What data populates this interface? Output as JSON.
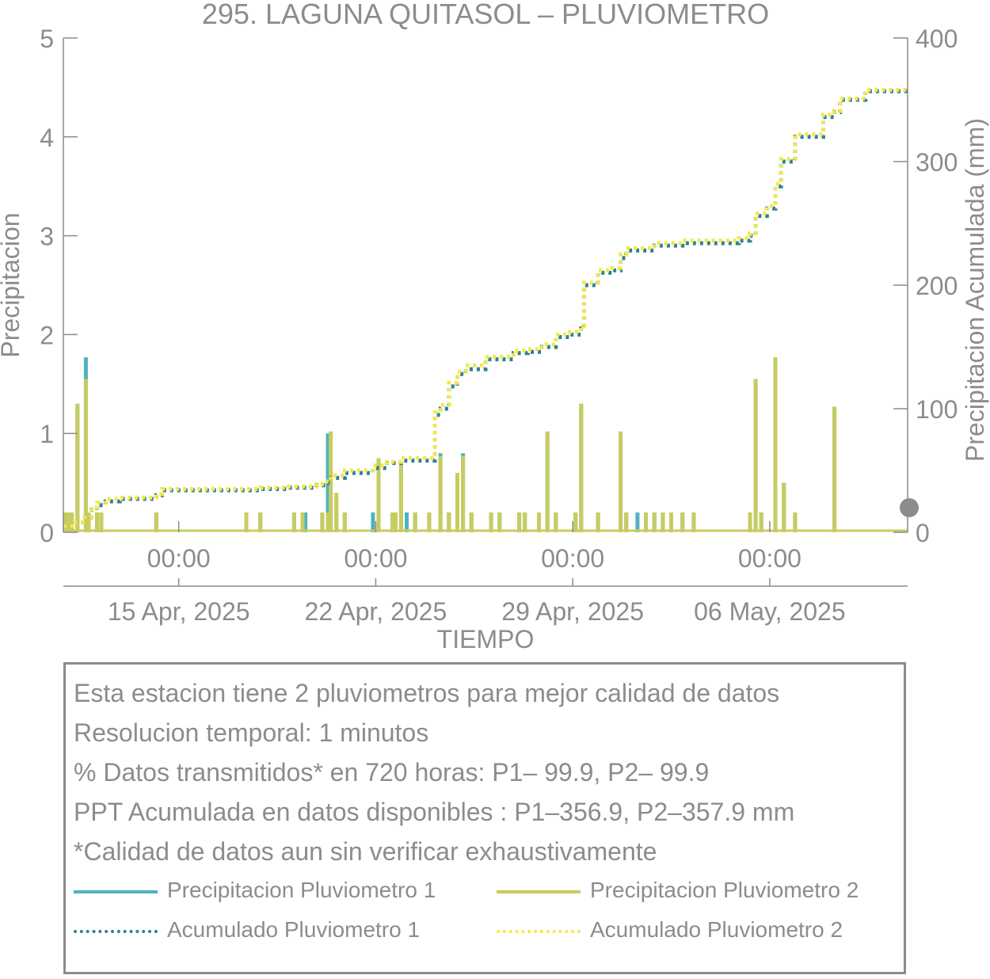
{
  "chart_data": {
    "type": "bar",
    "title": "295. LAGUNA QUITASOL – PLUVIOMETRO",
    "xlabel": "TIEMPO",
    "ylabel": "Precipitacion",
    "y2label": "Precipitacion Acumulada (mm)",
    "ylim": [
      0,
      5
    ],
    "y2lim": [
      0,
      400
    ],
    "yticks": [
      "0",
      "1",
      "2",
      "3",
      "4",
      "5"
    ],
    "y2ticks": [
      "0",
      "100",
      "200",
      "300",
      "400"
    ],
    "xlim_days": [
      0,
      30
    ],
    "xticks": [
      {
        "day": 4.1,
        "time": "00:00",
        "date": "15 Apr, 2025"
      },
      {
        "day": 11.1,
        "time": "00:00",
        "date": "22 Apr, 2025"
      },
      {
        "day": 18.1,
        "time": "00:00",
        "date": "29 Apr, 2025"
      },
      {
        "day": 25.1,
        "time": "00:00",
        "date": "06 May, 2025"
      }
    ],
    "colors": {
      "p1_bar": "#4fb3bf",
      "p2_bar": "#c8cc60",
      "p1_cum": "#2e7f96",
      "p2_cum": "#f2e84a",
      "axis": "#8c8c8c"
    },
    "series": [
      {
        "name": "Precipitacion Pluviometro 1",
        "kind": "bar",
        "axis": "left",
        "x": [
          0.05,
          0.2,
          0.3,
          0.5,
          0.8,
          0.9,
          1.2,
          1.35,
          3.3,
          6.5,
          7.0,
          8.2,
          8.5,
          8.6,
          9.2,
          9.4,
          9.5,
          9.7,
          10.0,
          11.0,
          11.2,
          11.7,
          11.8,
          12.0,
          12.2,
          12.5,
          13.0,
          13.4,
          13.7,
          14.0,
          14.2,
          14.5,
          15.2,
          15.5,
          16.2,
          16.4,
          16.9,
          17.2,
          17.5,
          18.2,
          18.4,
          19.0,
          19.8,
          20.0,
          20.4,
          20.7,
          21.0,
          21.3,
          21.6,
          22.0,
          22.4,
          24.4,
          24.6,
          24.8,
          25.3,
          25.6,
          26.0,
          27.4
        ],
        "values": [
          0.2,
          0.2,
          0.2,
          1.3,
          1.77,
          0.2,
          0.2,
          0.2,
          0.2,
          0.2,
          0.2,
          0.2,
          0.2,
          0.2,
          0.2,
          1.0,
          0.4,
          0.2,
          0.2,
          0.2,
          0.7,
          0.2,
          0.2,
          0.7,
          0.2,
          0.2,
          0.2,
          0.8,
          0.2,
          0.6,
          0.8,
          0.2,
          0.2,
          0.2,
          0.2,
          0.2,
          0.2,
          1.0,
          0.2,
          0.2,
          1.3,
          0.2,
          1.0,
          0.2,
          0.2,
          0.2,
          0.2,
          0.2,
          0.2,
          0.2,
          0.2,
          0.2,
          1.55,
          0.2,
          1.77,
          0.5,
          0.2,
          1.27
        ]
      },
      {
        "name": "Precipitacion Pluviometro 2",
        "kind": "bar",
        "axis": "left",
        "x": [
          0.05,
          0.2,
          0.3,
          0.5,
          0.8,
          0.9,
          1.2,
          1.35,
          3.3,
          6.5,
          7.0,
          8.2,
          8.5,
          9.2,
          9.4,
          9.5,
          9.7,
          10.0,
          11.2,
          11.7,
          11.8,
          12.0,
          12.5,
          13.0,
          13.4,
          13.7,
          14.0,
          14.2,
          14.5,
          15.2,
          15.5,
          16.2,
          16.4,
          16.9,
          17.2,
          17.5,
          18.2,
          18.4,
          19.0,
          19.8,
          20.0,
          20.7,
          21.0,
          21.3,
          21.6,
          22.0,
          22.4,
          24.4,
          24.6,
          24.8,
          25.3,
          25.6,
          26.0,
          27.4
        ],
        "values": [
          0.2,
          0.2,
          0.2,
          1.3,
          1.55,
          0.2,
          0.2,
          0.2,
          0.2,
          0.2,
          0.2,
          0.2,
          0.2,
          0.2,
          0.2,
          1.02,
          0.4,
          0.2,
          0.75,
          0.2,
          0.2,
          0.7,
          0.2,
          0.2,
          0.77,
          0.2,
          0.6,
          0.77,
          0.2,
          0.2,
          0.2,
          0.2,
          0.2,
          0.2,
          1.02,
          0.2,
          0.2,
          1.3,
          0.2,
          1.02,
          0.2,
          0.2,
          0.2,
          0.2,
          0.2,
          0.2,
          0.2,
          0.2,
          1.55,
          0.2,
          1.77,
          0.5,
          0.2,
          1.27
        ]
      },
      {
        "name": "Acumulado Pluviometro 1",
        "kind": "line",
        "axis": "right",
        "x": [
          0,
          0.4,
          0.7,
          1.0,
          1.2,
          1.5,
          2.0,
          3.0,
          3.3,
          3.5,
          5.0,
          7.0,
          8.0,
          9.0,
          9.3,
          9.5,
          10.0,
          11.0,
          11.5,
          12.0,
          13.0,
          13.2,
          13.4,
          13.7,
          14.0,
          14.3,
          15.0,
          16.0,
          16.5,
          17.0,
          17.5,
          18.0,
          18.4,
          18.5,
          19.0,
          19.5,
          19.8,
          20.0,
          21.0,
          22.0,
          24.0,
          24.4,
          24.6,
          25.0,
          25.3,
          25.5,
          26.0,
          27.0,
          27.4,
          27.6,
          28.5,
          30.0
        ],
        "values": [
          5,
          8,
          12,
          18,
          22,
          25,
          27,
          27,
          30,
          34,
          34,
          35,
          36,
          38,
          40,
          44,
          48,
          52,
          56,
          58,
          58,
          95,
          100,
          118,
          128,
          132,
          140,
          145,
          146,
          150,
          158,
          160,
          165,
          200,
          210,
          212,
          222,
          228,
          232,
          234,
          236,
          240,
          256,
          262,
          280,
          300,
          320,
          336,
          340,
          350,
          357,
          357
        ]
      },
      {
        "name": "Acumulado Pluviometro 2",
        "kind": "line",
        "axis": "right",
        "x": [
          0,
          0.4,
          0.7,
          1.0,
          1.2,
          1.5,
          2.0,
          3.0,
          3.3,
          3.5,
          5.0,
          7.0,
          8.0,
          9.0,
          9.3,
          9.5,
          10.0,
          11.0,
          11.5,
          12.0,
          13.0,
          13.2,
          13.4,
          13.7,
          14.0,
          14.3,
          15.0,
          16.0,
          16.5,
          17.0,
          17.5,
          18.0,
          18.4,
          18.5,
          19.0,
          19.5,
          19.8,
          20.0,
          21.0,
          22.0,
          24.0,
          24.4,
          24.6,
          25.0,
          25.3,
          25.5,
          26.0,
          27.0,
          27.4,
          27.6,
          28.5,
          30.0
        ],
        "values": [
          5,
          8,
          12,
          20,
          24,
          27,
          28,
          28,
          31,
          35,
          35,
          36,
          37,
          39,
          41,
          46,
          50,
          54,
          57,
          60,
          60,
          97,
          103,
          121,
          130,
          135,
          142,
          147,
          148,
          152,
          160,
          162,
          167,
          202,
          212,
          214,
          225,
          230,
          234,
          236,
          238,
          242,
          258,
          264,
          282,
          302,
          322,
          338,
          341,
          351,
          358,
          358
        ]
      }
    ]
  },
  "info": {
    "lines": [
      "Esta estacion tiene 2 pluviometros para mejor calidad de datos",
      "Resolucion temporal: 1 minutos",
      "% Datos transmitidos* en 720 horas: P1– 99.9, P2– 99.9",
      "PPT Acumulada en datos disponibles : P1–356.9, P2–357.9 mm",
      "*Calidad de datos aun sin verificar exhaustivamente"
    ]
  },
  "legend": {
    "items": [
      {
        "label": "Precipitacion Pluviometro 1",
        "color": "#4fb3bf",
        "style": "solid"
      },
      {
        "label": "Precipitacion Pluviometro 2",
        "color": "#c8cc60",
        "style": "solid"
      },
      {
        "label": "Acumulado Pluviometro 1",
        "color": "#2e7f96",
        "style": "dotted"
      },
      {
        "label": "Acumulado Pluviometro 2",
        "color": "#f2e84a",
        "style": "dotted"
      }
    ]
  }
}
